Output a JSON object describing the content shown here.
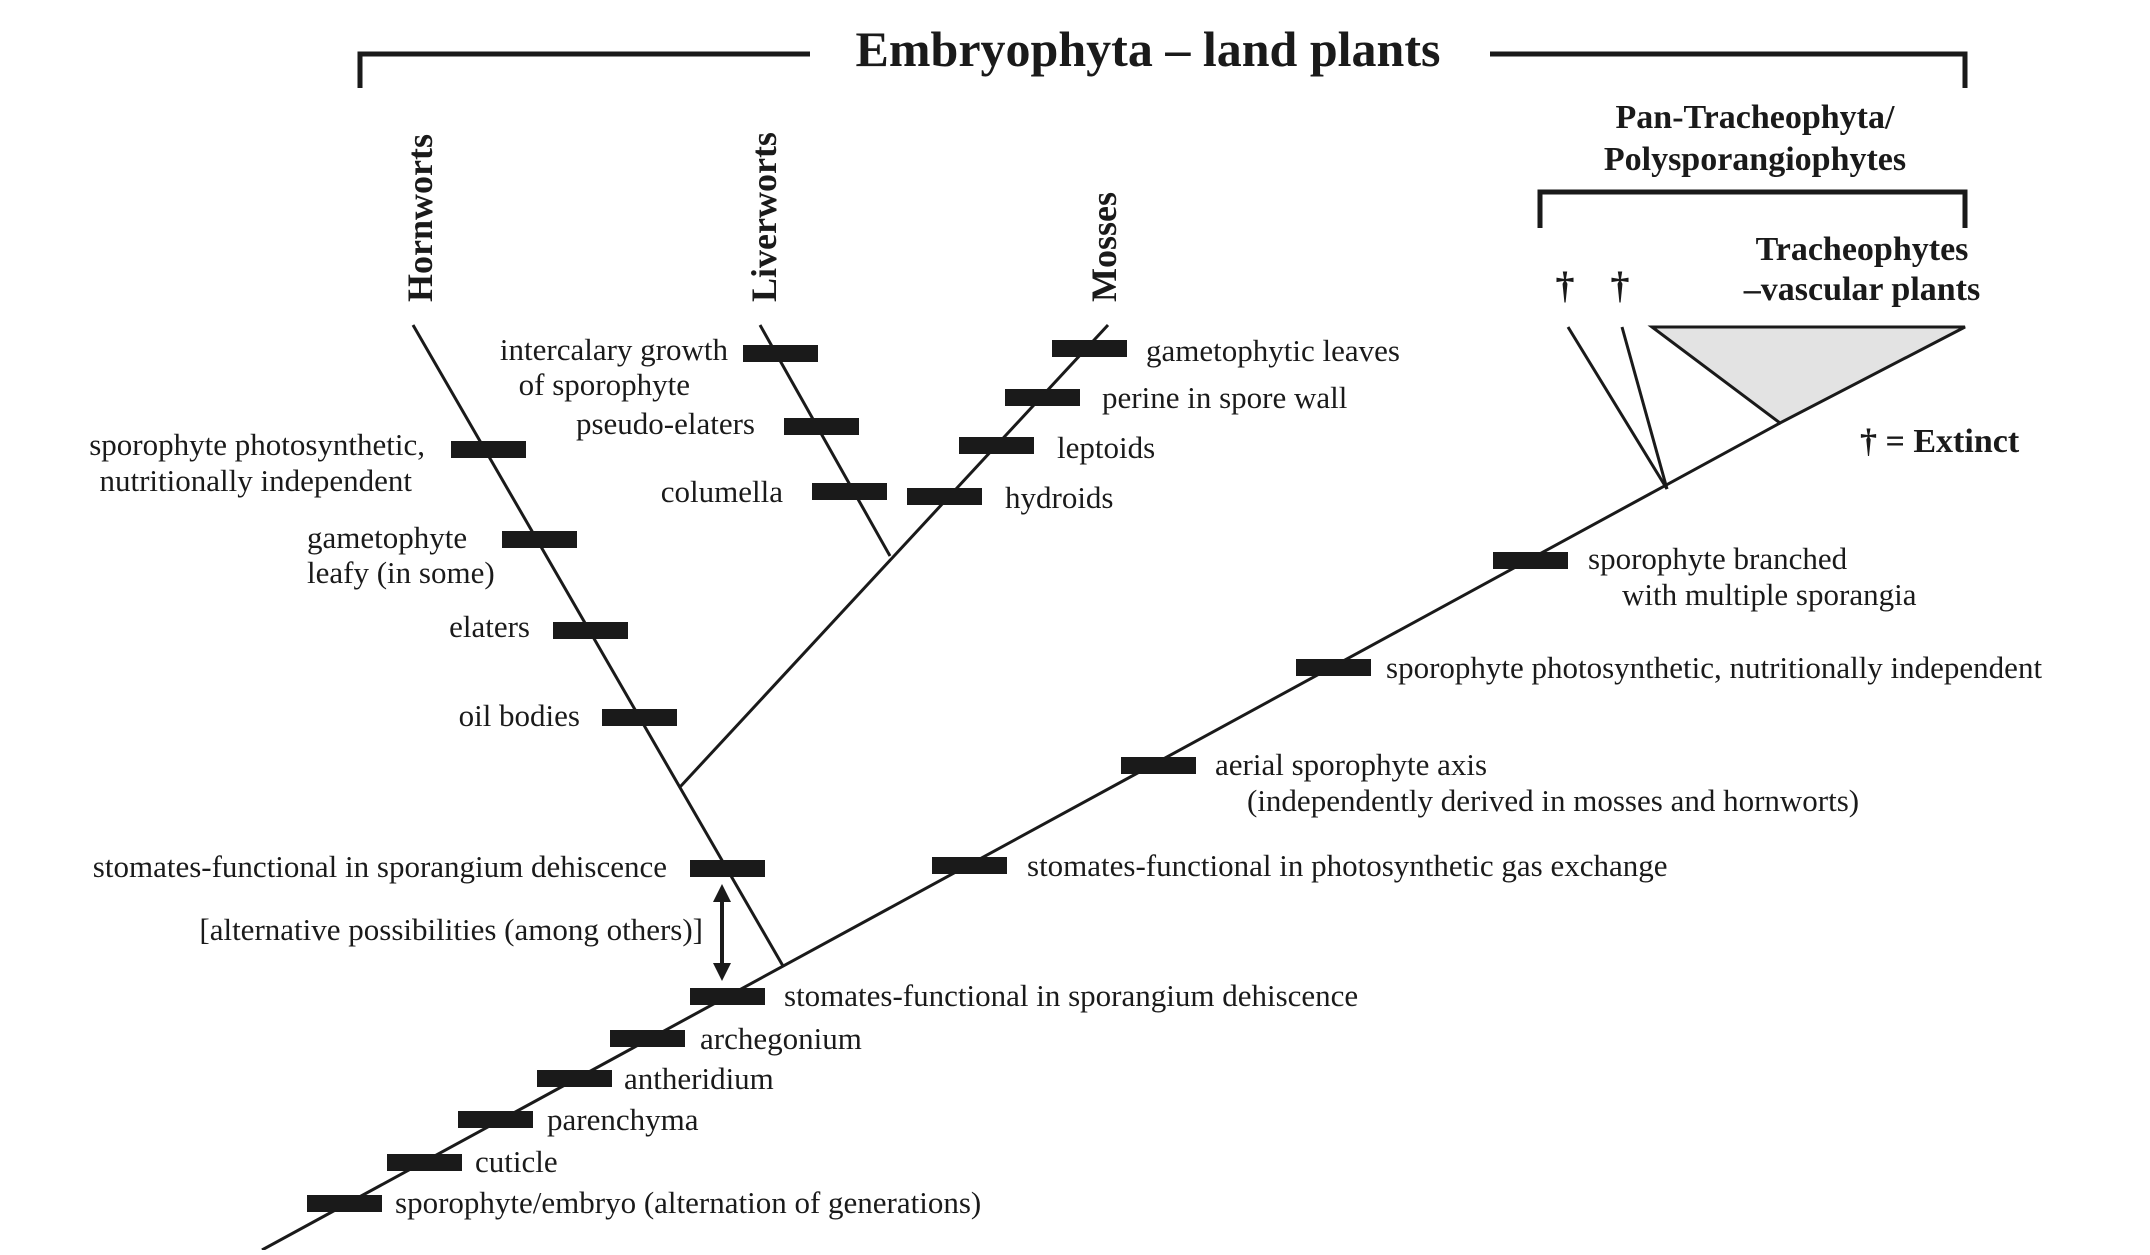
{
  "title": "Embryophyta – land plants",
  "clades": {
    "hornworts": "Hornworts",
    "liverworts": "Liverworts",
    "mosses": "Mosses",
    "pan_tracheophyta_line1": "Pan-Tracheophyta/",
    "pan_tracheophyta_line2": "Polysporangiophytes",
    "tracheophytes_line1": "Tracheophytes",
    "tracheophytes_line2": "–vascular plants",
    "dagger": "†",
    "extinct_legend": "† = Extinct"
  },
  "colors": {
    "ink": "#1a1a1a",
    "triangle_fill": "#e3e3e3"
  },
  "traits": {
    "hornworts": {
      "sporophyte_photo_1": "sporophyte photosynthetic,",
      "sporophyte_photo_2": "nutritionally independent",
      "gametophyte_1": "gametophyte",
      "gametophyte_2": "leafy (in some)",
      "elaters": "elaters",
      "oil_bodies": "oil bodies",
      "stomates_sporangium": "stomates-functional in sporangium dehiscence",
      "alternative": "[alternative possibilities (among others)]"
    },
    "liverworts": {
      "intercalary_1": "intercalary growth",
      "intercalary_2": "of sporophyte",
      "pseudo_elaters": "pseudo-elaters",
      "columella": "columella"
    },
    "mosses": {
      "gametophytic_leaves": "gametophytic leaves",
      "perine": "perine in spore wall",
      "leptoids": "leptoids",
      "hydroids": "hydroids"
    },
    "trunk": {
      "sporophyte_branched_1": "sporophyte branched",
      "sporophyte_branched_2": "with multiple sporangia",
      "sporophyte_photo": "sporophyte photosynthetic, nutritionally independent",
      "aerial_axis_1": "aerial sporophyte axis",
      "aerial_axis_2": "(independently derived in mosses and hornworts)",
      "stomates_gas": "stomates-functional in photosynthetic gas exchange",
      "stomates_sporangium": "stomates-functional in sporangium dehiscence",
      "archegonium": "archegonium",
      "antheridium": "antheridium",
      "parenchyma": "parenchyma",
      "cuticle": "cuticle",
      "sporophyte_embryo": "sporophyte/embryo (alternation of generations)"
    }
  }
}
